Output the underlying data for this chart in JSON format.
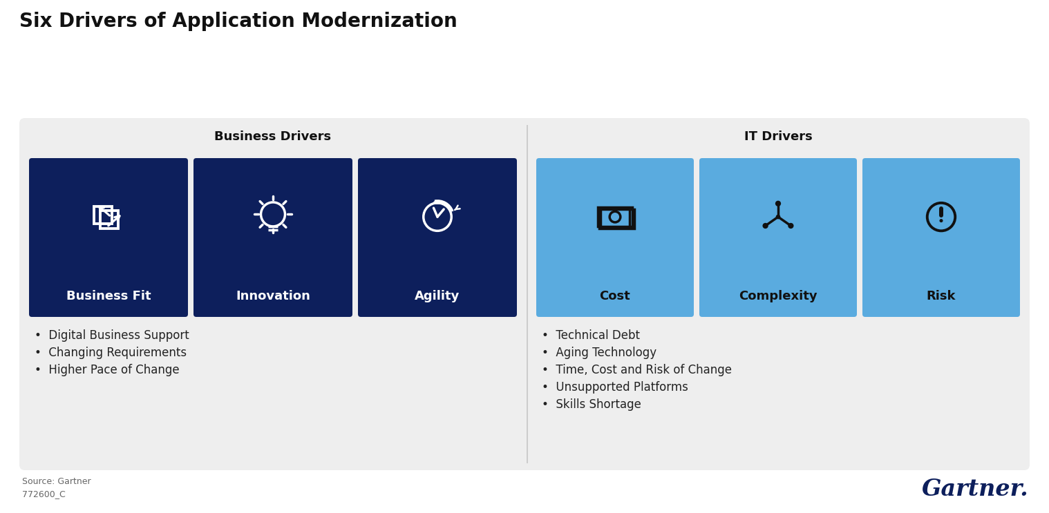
{
  "title": "Six Drivers of Application Modernization",
  "title_fontsize": 20,
  "title_fontweight": "bold",
  "bg_color": "#ffffff",
  "panel_bg": "#eeeeee",
  "business_color": "#0d1f5c",
  "it_color": "#5aabdf",
  "business_drivers_label": "Business Drivers",
  "it_drivers_label": "IT Drivers",
  "business_cards": [
    "Business Fit",
    "Innovation",
    "Agility"
  ],
  "it_cards": [
    "Cost",
    "Complexity",
    "Risk"
  ],
  "business_bullets": [
    "•  Digital Business Support",
    "•  Changing Requirements",
    "•  Higher Pace of Change"
  ],
  "it_bullets": [
    "•  Technical Debt",
    "•  Aging Technology",
    "•  Time, Cost and Risk of Change",
    "•  Unsupported Platforms",
    "•  Skills Shortage"
  ],
  "source_text": "Source: Gartner",
  "code_text": "772600_C",
  "gartner_text": "Gartner.",
  "gartner_color": "#0d1f5c",
  "section_label_fontsize": 13,
  "card_label_fontsize": 13,
  "bullet_fontsize": 12,
  "source_fontsize": 9
}
